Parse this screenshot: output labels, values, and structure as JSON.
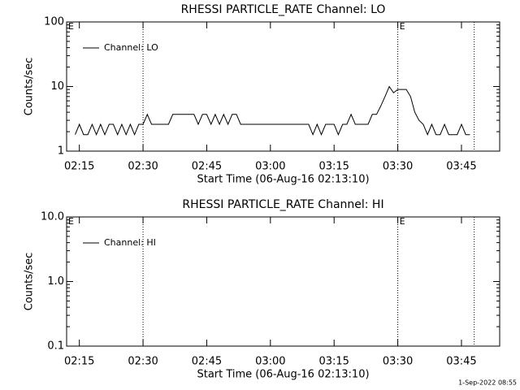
{
  "chart_data": [
    {
      "type": "line",
      "title": "RHESSI PARTICLE_RATE Channel: LO",
      "ylabel": "Counts/sec",
      "xlabel": "Start Time (06-Aug-16 02:13:10)",
      "log_y": true,
      "ylim": [
        1,
        100
      ],
      "yticks": [
        1,
        10,
        100
      ],
      "xlim": [
        "02:12",
        "03:54"
      ],
      "xticks": [
        "02:15",
        "02:30",
        "02:45",
        "03:00",
        "03:15",
        "03:30",
        "03:45"
      ],
      "vlines": [
        "02:30",
        "03:30",
        "03:48"
      ],
      "annotations": [
        {
          "text": "E",
          "x": "02:12"
        },
        {
          "text": "E",
          "x": "03:30"
        }
      ],
      "legend": "upper left",
      "x": [
        "02:14",
        "02:15",
        "02:16",
        "02:17",
        "02:18",
        "02:19",
        "02:20",
        "02:21",
        "02:22",
        "02:23",
        "02:24",
        "02:25",
        "02:26",
        "02:27",
        "02:28",
        "02:29",
        "02:30",
        "02:31",
        "02:32",
        "02:33",
        "02:34",
        "02:35",
        "02:36",
        "02:37",
        "02:38",
        "02:39",
        "02:40",
        "02:41",
        "02:42",
        "02:43",
        "02:44",
        "02:45",
        "02:46",
        "02:47",
        "02:48",
        "02:49",
        "02:50",
        "02:51",
        "02:52",
        "02:53",
        "02:54",
        "02:55",
        "02:56",
        "02:57",
        "02:58",
        "02:59",
        "03:00",
        "03:01",
        "03:02",
        "03:03",
        "03:04",
        "03:05",
        "03:06",
        "03:07",
        "03:08",
        "03:09",
        "03:10",
        "03:11",
        "03:12",
        "03:13",
        "03:14",
        "03:15",
        "03:16",
        "03:17",
        "03:18",
        "03:19",
        "03:20",
        "03:21",
        "03:22",
        "03:23",
        "03:24",
        "03:25",
        "03:26",
        "03:27",
        "03:28",
        "03:29",
        "03:30",
        "03:31",
        "03:32",
        "03:33",
        "03:34",
        "03:35",
        "03:36",
        "03:37",
        "03:38",
        "03:39",
        "03:40",
        "03:41",
        "03:42",
        "03:43",
        "03:44",
        "03:45",
        "03:46",
        "03:47"
      ],
      "series": [
        {
          "name": "Channel: LO",
          "color": "#000000",
          "values": [
            1.8,
            2.6,
            1.8,
            1.8,
            2.6,
            1.8,
            2.6,
            1.8,
            2.6,
            2.6,
            1.8,
            2.6,
            1.8,
            2.6,
            1.8,
            2.6,
            2.6,
            3.7,
            2.6,
            2.6,
            2.6,
            2.6,
            2.6,
            3.7,
            3.7,
            3.7,
            3.7,
            3.7,
            3.7,
            2.6,
            3.7,
            3.7,
            2.6,
            3.7,
            2.6,
            3.7,
            2.6,
            3.7,
            3.7,
            2.6,
            2.6,
            2.6,
            2.6,
            2.6,
            2.6,
            2.6,
            2.6,
            2.6,
            2.6,
            2.6,
            2.6,
            2.6,
            2.6,
            2.6,
            2.6,
            2.6,
            1.8,
            2.6,
            1.8,
            2.6,
            2.6,
            2.6,
            1.8,
            2.6,
            2.6,
            3.7,
            2.6,
            2.6,
            2.6,
            2.6,
            3.7,
            3.7,
            5,
            7,
            10,
            8,
            9,
            9,
            9,
            7,
            4,
            3,
            2.6,
            1.8,
            2.6,
            1.8,
            1.8,
            2.6,
            1.8,
            1.8,
            1.8,
            2.6,
            1.8,
            1.8
          ]
        }
      ]
    },
    {
      "type": "line",
      "title": "RHESSI PARTICLE_RATE Channel: HI",
      "ylabel": "Counts/sec",
      "xlabel": "Start Time (06-Aug-16 02:13:10)",
      "log_y": true,
      "ylim": [
        0.1,
        10
      ],
      "yticks": [
        0.1,
        {
          "value": 1,
          "label": "1.0"
        },
        {
          "value": 10,
          "label": "10.0"
        }
      ],
      "xlim": [
        "02:12",
        "03:54"
      ],
      "xticks": [
        "02:15",
        "02:30",
        "02:45",
        "03:00",
        "03:15",
        "03:30",
        "03:45"
      ],
      "vlines": [
        "02:30",
        "03:30",
        "03:48"
      ],
      "annotations": [
        {
          "text": "E",
          "x": "02:12"
        },
        {
          "text": "E",
          "x": "03:30"
        }
      ],
      "legend": "upper left",
      "x": [],
      "series": [
        {
          "name": "Channel: HI",
          "color": "#000000",
          "values": []
        }
      ]
    }
  ],
  "footer": "1-Sep-2022 08:55"
}
